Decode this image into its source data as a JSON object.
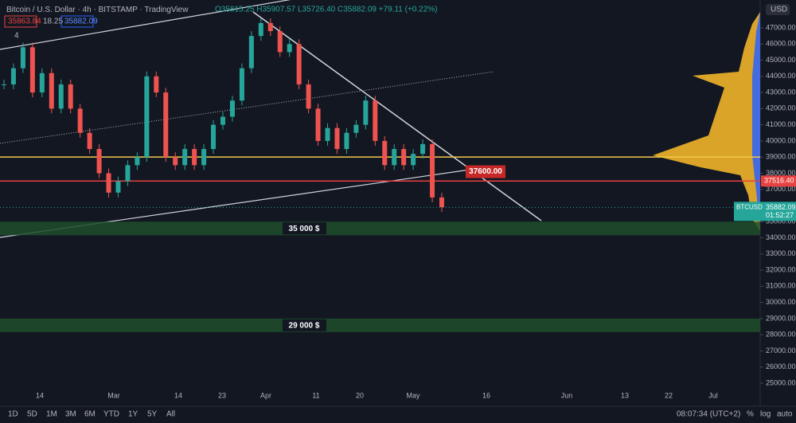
{
  "header": {
    "symbol": "Bitcoin / U.S. Dollar",
    "interval": "4h",
    "exchange": "BITSTAMP",
    "source": "TradingView",
    "ohlc": "O35815.25 H35907.57 L35726.40 C35882.09 +79.11 (+0.22%)",
    "sell": "35863.84",
    "spread": "18.25",
    "buy": "35882.09",
    "indicators": "4"
  },
  "chart_data": {
    "type": "candlestick",
    "values": [
      43500,
      44500,
      45800,
      43000,
      44200,
      42000,
      43500,
      42000,
      40500,
      39500,
      38000,
      36800,
      37500,
      38500,
      39000,
      44000,
      43000,
      39000,
      38500,
      39500,
      38500,
      39500,
      41000,
      41500,
      42500,
      44500,
      46500,
      47300,
      46800,
      45500,
      46000,
      43500,
      42000,
      40000,
      40800,
      39500,
      40500,
      41000,
      42500,
      40000,
      38500,
      39500,
      38500,
      39200,
      39800,
      36500,
      35900
    ],
    "ylim": [
      25000,
      47000
    ],
    "yticks": [
      {
        "value": 47000,
        "label": "47000.00"
      },
      {
        "value": 46000,
        "label": "46000.00"
      },
      {
        "value": 45000,
        "label": "45000.00"
      },
      {
        "value": 44000,
        "label": "44000.00"
      },
      {
        "value": 43000,
        "label": "43000.00"
      },
      {
        "value": 42000,
        "label": "42000.00"
      },
      {
        "value": 41000,
        "label": "41000.00"
      },
      {
        "value": 40000,
        "label": "40000.00"
      },
      {
        "value": 39000,
        "label": "39000.00"
      },
      {
        "value": 38000,
        "label": "38000.00"
      },
      {
        "value": 37000,
        "label": "37000.00"
      },
      {
        "value": 36000,
        "label": "36000.00"
      },
      {
        "value": 35000,
        "label": "35000.00"
      },
      {
        "value": 34000,
        "label": "34000.00"
      },
      {
        "value": 33000,
        "label": "33000.00"
      },
      {
        "value": 32000,
        "label": "32000.00"
      },
      {
        "value": 31000,
        "label": "31000.00"
      },
      {
        "value": 30000,
        "label": "30000.00"
      },
      {
        "value": 29000,
        "label": "29000.00"
      },
      {
        "value": 28000,
        "label": "28000.00"
      },
      {
        "value": 27000,
        "label": "27000.00"
      },
      {
        "value": 26000,
        "label": "26000.00"
      },
      {
        "value": 25000,
        "label": "25000.00"
      }
    ],
    "x_labels": [
      "14",
      "Mar",
      "14",
      "23",
      "Apr",
      "11",
      "20",
      "May",
      "16",
      "Jun",
      "13",
      "22",
      "Jul"
    ],
    "currency": "USD",
    "levels": [
      {
        "value": 39000,
        "color": "#f2c94c"
      },
      {
        "value": 37516.4,
        "label": "37516.40",
        "color": "#e84141"
      }
    ],
    "annotation": {
      "value": 37600,
      "label": "37600.00"
    },
    "zones": [
      {
        "value": 35000,
        "label": "35 000 $"
      },
      {
        "value": 29000,
        "label": "29 000 $"
      }
    ],
    "last_price": {
      "value": 35882.09,
      "label": "35882.09",
      "symbol": "BTCUSD",
      "countdown": "01:52:27"
    }
  },
  "toolbar": {
    "ranges": [
      "1D",
      "5D",
      "1M",
      "3M",
      "6M",
      "YTD",
      "1Y",
      "5Y",
      "All"
    ],
    "time": "08:07:34 (UTC+2)",
    "percent": "%",
    "log": "log",
    "auto": "auto"
  }
}
